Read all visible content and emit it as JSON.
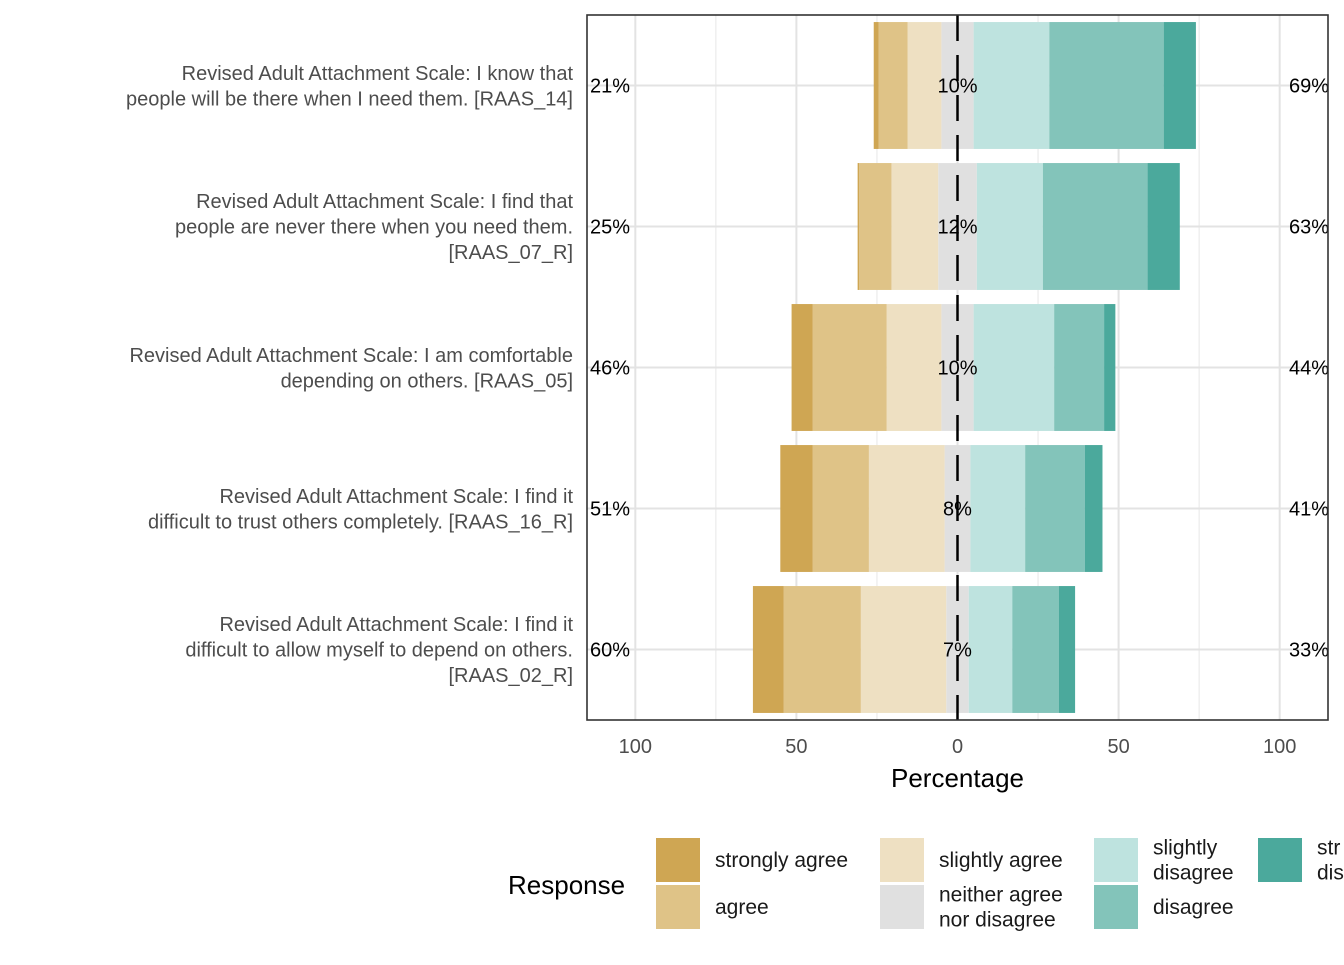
{
  "chart_data": {
    "type": "bar",
    "subtype": "diverging-stacked-likert",
    "orientation": "horizontal",
    "xlabel": "Percentage",
    "x_ticks": [
      {
        "value": -100,
        "label": "100"
      },
      {
        "value": -50,
        "label": "50"
      },
      {
        "value": 0,
        "label": "0"
      },
      {
        "value": 50,
        "label": "50"
      },
      {
        "value": 100,
        "label": "100"
      }
    ],
    "xlim": [
      -115,
      115
    ],
    "grid": true,
    "legend": {
      "title": "Response",
      "position": "bottom",
      "entries": [
        {
          "key": "strongly_agree",
          "label": [
            "strongly agree"
          ],
          "color": "#CFA653"
        },
        {
          "key": "agree",
          "label": [
            "agree"
          ],
          "color": "#DFC387"
        },
        {
          "key": "slightly_agree",
          "label": [
            "slightly agree"
          ],
          "color": "#EEE0C2"
        },
        {
          "key": "neutral",
          "label": [
            "neither agree",
            "nor disagree"
          ],
          "color": "#E0E0E0"
        },
        {
          "key": "slightly_disagree",
          "label": [
            "slightly",
            "disagree"
          ],
          "color": "#BEE3DF"
        },
        {
          "key": "disagree",
          "label": [
            "disagree"
          ],
          "color": "#83C4BA"
        },
        {
          "key": "strongly_disagree",
          "label": [
            "str",
            "dis"
          ],
          "color": "#4BA99C"
        }
      ]
    },
    "items": [
      {
        "label": [
          "Revised Adult Attachment Scale: I know that",
          "people will be there when I need them. [RAAS_14]"
        ],
        "values": {
          "strongly_agree": 1.5,
          "agree": 9,
          "slightly_agree": 10.5,
          "neutral": 10,
          "slightly_disagree": 23.5,
          "disagree": 35.5,
          "strongly_disagree": 10
        },
        "left_label": "21%",
        "center_label": "10%",
        "right_label": "69%"
      },
      {
        "label": [
          "Revised Adult Attachment Scale: I find that",
          "people are never there when you need them.",
          "[RAAS_07_R]"
        ],
        "values": {
          "strongly_agree": 0.5,
          "agree": 10,
          "slightly_agree": 14.5,
          "neutral": 12,
          "slightly_disagree": 20.5,
          "disagree": 32.5,
          "strongly_disagree": 10
        },
        "left_label": "25%",
        "center_label": "12%",
        "right_label": "63%"
      },
      {
        "label": [
          "Revised Adult Attachment Scale: I am comfortable",
          "depending on others. [RAAS_05]"
        ],
        "values": {
          "strongly_agree": 6.5,
          "agree": 23,
          "slightly_agree": 17,
          "neutral": 10,
          "slightly_disagree": 25,
          "disagree": 15.5,
          "strongly_disagree": 3.5
        },
        "left_label": "46%",
        "center_label": "10%",
        "right_label": "44%"
      },
      {
        "label": [
          "Revised Adult Attachment Scale: I find it",
          "difficult to trust others completely. [RAAS_16_R]"
        ],
        "values": {
          "strongly_agree": 10,
          "agree": 17.5,
          "slightly_agree": 23.5,
          "neutral": 8,
          "slightly_disagree": 17,
          "disagree": 18.5,
          "strongly_disagree": 5.5
        },
        "left_label": "51%",
        "center_label": "8%",
        "right_label": "41%"
      },
      {
        "label": [
          "Revised Adult Attachment Scale: I find it",
          "difficult to allow myself to depend on others.",
          "[RAAS_02_R]"
        ],
        "values": {
          "strongly_agree": 9.5,
          "agree": 24,
          "slightly_agree": 26.5,
          "neutral": 7,
          "slightly_disagree": 13.5,
          "disagree": 14.5,
          "strongly_disagree": 5
        },
        "left_label": "60%",
        "center_label": "7%",
        "right_label": "33%"
      }
    ]
  }
}
